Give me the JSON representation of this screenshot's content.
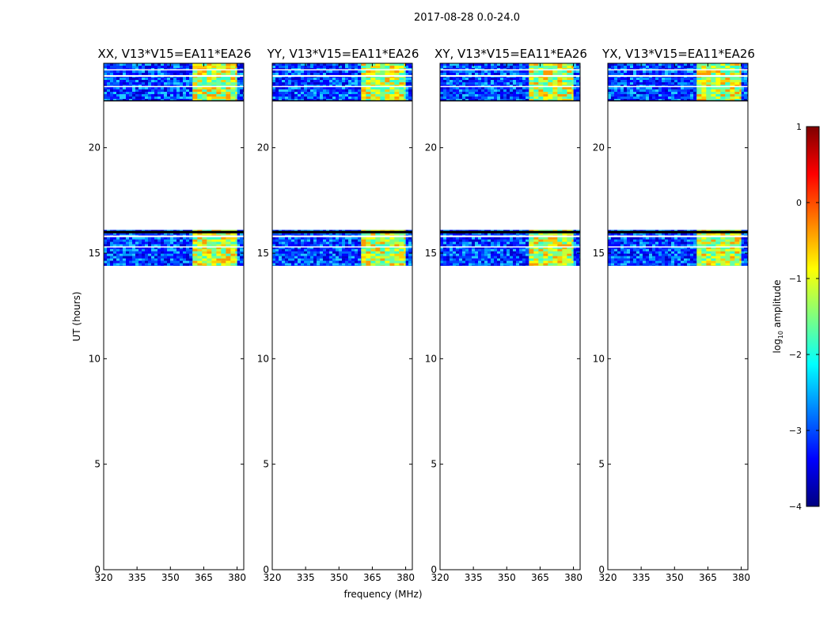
{
  "figure": {
    "suptitle": "2017-08-28 0.0-24.0",
    "ylabel": "UT (hours)",
    "xlabel": "frequency (MHz)"
  },
  "colorbar": {
    "label": "log",
    "label_sub": "10",
    "label_rest": " amplitude",
    "range": [
      -4,
      1
    ],
    "ticks": [
      1,
      0,
      -1,
      -2,
      -3,
      -4
    ],
    "tick_labels": [
      "1",
      "0",
      "−1",
      "−2",
      "−3",
      "−4"
    ],
    "colormap": [
      "#00007f",
      "#0000ff",
      "#007fff",
      "#00ffff",
      "#7fff7f",
      "#ffff00",
      "#ff7f00",
      "#ff0000",
      "#7f0000"
    ]
  },
  "chart_data": [
    {
      "type": "heatmap",
      "title": "XX, V13*V15=EA11*EA26",
      "xlabel": "",
      "ylabel": "UT (hours)",
      "xlim": [
        320,
        383
      ],
      "ylim": [
        0,
        24
      ],
      "xticks": [
        320,
        335,
        350,
        365,
        380
      ],
      "yticks": [
        0,
        5,
        10,
        15,
        20
      ],
      "data_blocks": [
        {
          "ut": [
            14.4,
            16.1
          ],
          "freq": [
            320,
            383
          ],
          "level": "low"
        },
        {
          "ut": [
            22.2,
            24.0
          ],
          "freq": [
            320,
            383
          ],
          "level": "low"
        },
        {
          "ut": [
            14.4,
            16.1
          ],
          "freq": [
            360,
            380
          ],
          "level": "high"
        },
        {
          "ut": [
            22.2,
            24.0
          ],
          "freq": [
            360,
            380
          ],
          "level": "high"
        }
      ]
    },
    {
      "type": "heatmap",
      "title": "YY, V13*V15=EA11*EA26",
      "xlabel": "frequency (MHz)",
      "ylabel": "",
      "xlim": [
        320,
        383
      ],
      "ylim": [
        0,
        24
      ],
      "xticks": [
        320,
        335,
        350,
        365,
        380
      ],
      "yticks": [
        0,
        5,
        10,
        15,
        20
      ],
      "data_blocks": [
        {
          "ut": [
            14.4,
            16.1
          ],
          "freq": [
            320,
            383
          ],
          "level": "low"
        },
        {
          "ut": [
            22.2,
            24.0
          ],
          "freq": [
            320,
            383
          ],
          "level": "low"
        },
        {
          "ut": [
            14.4,
            16.1
          ],
          "freq": [
            360,
            380
          ],
          "level": "high"
        },
        {
          "ut": [
            22.2,
            24.0
          ],
          "freq": [
            360,
            380
          ],
          "level": "high"
        }
      ]
    },
    {
      "type": "heatmap",
      "title": "XY, V13*V15=EA11*EA26",
      "xlabel": "",
      "ylabel": "",
      "xlim": [
        320,
        383
      ],
      "ylim": [
        0,
        24
      ],
      "xticks": [
        320,
        335,
        350,
        365,
        380
      ],
      "yticks": [
        0,
        5,
        10,
        15,
        20
      ],
      "data_blocks": [
        {
          "ut": [
            14.4,
            16.1
          ],
          "freq": [
            320,
            383
          ],
          "level": "low"
        },
        {
          "ut": [
            22.2,
            24.0
          ],
          "freq": [
            320,
            383
          ],
          "level": "low"
        },
        {
          "ut": [
            14.4,
            16.1
          ],
          "freq": [
            360,
            380
          ],
          "level": "high"
        },
        {
          "ut": [
            22.2,
            24.0
          ],
          "freq": [
            360,
            380
          ],
          "level": "high"
        }
      ]
    },
    {
      "type": "heatmap",
      "title": "YX, V13*V15=EA11*EA26",
      "xlabel": "",
      "ylabel": "",
      "xlim": [
        320,
        383
      ],
      "ylim": [
        0,
        24
      ],
      "xticks": [
        320,
        335,
        350,
        365,
        380
      ],
      "yticks": [
        0,
        5,
        10,
        15,
        20
      ],
      "data_blocks": [
        {
          "ut": [
            14.4,
            16.1
          ],
          "freq": [
            320,
            383
          ],
          "level": "low"
        },
        {
          "ut": [
            22.2,
            24.0
          ],
          "freq": [
            320,
            383
          ],
          "level": "low"
        },
        {
          "ut": [
            14.4,
            16.1
          ],
          "freq": [
            360,
            380
          ],
          "level": "high"
        },
        {
          "ut": [
            22.2,
            24.0
          ],
          "freq": [
            360,
            380
          ],
          "level": "high"
        }
      ]
    }
  ]
}
